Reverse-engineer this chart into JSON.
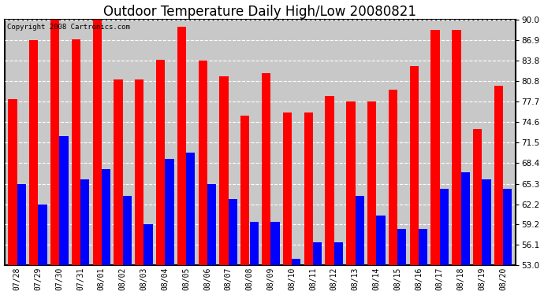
{
  "title": "Outdoor Temperature Daily High/Low 20080821",
  "copyright": "Copyright 2008 Cartronics.com",
  "dates": [
    "07/28",
    "07/29",
    "07/30",
    "07/31",
    "08/01",
    "08/02",
    "08/03",
    "08/04",
    "08/05",
    "08/06",
    "08/07",
    "08/08",
    "08/09",
    "08/10",
    "08/11",
    "08/12",
    "08/13",
    "08/14",
    "08/15",
    "08/16",
    "08/17",
    "08/18",
    "08/19",
    "08/20"
  ],
  "highs": [
    78.0,
    86.9,
    90.0,
    87.0,
    90.0,
    81.0,
    81.0,
    84.0,
    89.0,
    83.8,
    81.5,
    75.5,
    82.0,
    76.0,
    76.0,
    78.5,
    77.7,
    77.7,
    79.5,
    83.0,
    88.5,
    88.5,
    73.5,
    80.0
  ],
  "lows": [
    65.3,
    62.2,
    72.5,
    66.0,
    67.5,
    63.5,
    59.2,
    69.0,
    70.0,
    65.3,
    63.0,
    59.5,
    59.5,
    54.0,
    56.5,
    56.5,
    63.5,
    60.5,
    58.5,
    58.5,
    64.5,
    67.0,
    66.0,
    64.5
  ],
  "high_color": "#ff0000",
  "low_color": "#0000ff",
  "plot_bg_color": "#c8c8c8",
  "bg_color": "#ffffff",
  "ymin": 53.0,
  "ymax": 90.0,
  "yticks": [
    53.0,
    56.1,
    59.2,
    62.2,
    65.3,
    68.4,
    71.5,
    74.6,
    77.7,
    80.8,
    83.8,
    86.9,
    90.0
  ],
  "bar_width": 0.42,
  "title_fontsize": 12
}
